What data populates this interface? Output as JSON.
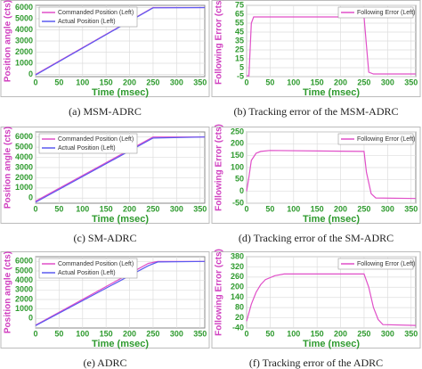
{
  "chart_data": [
    {
      "type": "line",
      "caption": "(a) MSM-ADRC",
      "x_label": "Time (msec)",
      "y_label": "Position angle (cts)",
      "xlim": [
        0,
        360
      ],
      "xticks": [
        0,
        50,
        100,
        150,
        200,
        250,
        300,
        350
      ],
      "ylim": [
        -200,
        6200
      ],
      "yticks": [
        0,
        1000,
        2000,
        3000,
        4000,
        5000,
        6000
      ],
      "grid": true,
      "legend": "upper-left",
      "x": [
        0,
        250,
        360
      ],
      "series": [
        {
          "name": "Commanded Position (Left)",
          "color": "#e04fc8",
          "values": [
            0,
            6000,
            6000
          ]
        },
        {
          "name": "Actual Position (Left)",
          "color": "#5a5af0",
          "values": [
            -50,
            5980,
            6000
          ]
        }
      ]
    },
    {
      "type": "line",
      "caption": "(b) Tracking error of the MSM-ADRC",
      "x_label": "Time (msec)",
      "y_label": "Following Error (cts)",
      "xlim": [
        0,
        360
      ],
      "xticks": [
        0,
        50,
        100,
        150,
        200,
        250,
        300,
        350
      ],
      "ylim": [
        -5,
        75
      ],
      "yticks": [
        -5,
        5,
        15,
        25,
        35,
        45,
        55,
        65,
        75
      ],
      "grid": true,
      "legend": "upper-right",
      "x": [
        0,
        5,
        10,
        15,
        250,
        255,
        260,
        270,
        360
      ],
      "series": [
        {
          "name": "Following Error (Left)",
          "color": "#e04fc8",
          "values": [
            -4,
            -4,
            55,
            62,
            62,
            30,
            0,
            -2,
            -2
          ]
        }
      ]
    },
    {
      "type": "line",
      "caption": "(c) SM-ADRC",
      "x_label": "Time (msec)",
      "y_label": "Position angle (cts)",
      "xlim": [
        0,
        360
      ],
      "xticks": [
        0,
        50,
        100,
        150,
        200,
        250,
        300,
        350
      ],
      "ylim": [
        -500,
        6500
      ],
      "yticks": [
        0,
        1000,
        2000,
        3000,
        4000,
        5000,
        6000
      ],
      "grid": true,
      "legend": "upper-left",
      "x": [
        0,
        250,
        360
      ],
      "series": [
        {
          "name": "Commanded Position (Left)",
          "color": "#e04fc8",
          "values": [
            -300,
            6000,
            6000
          ]
        },
        {
          "name": "Actual Position (Left)",
          "color": "#5a5af0",
          "values": [
            -400,
            5900,
            6000
          ]
        }
      ]
    },
    {
      "type": "line",
      "caption": "(d) Tracking error of the SM-ADRC",
      "x_label": "Time (msec)",
      "y_label": "Following Error (cts)",
      "xlim": [
        0,
        360
      ],
      "xticks": [
        0,
        50,
        100,
        150,
        200,
        250,
        300,
        350
      ],
      "ylim": [
        -50,
        250
      ],
      "yticks": [
        -50,
        0,
        50,
        100,
        150,
        200,
        250
      ],
      "grid": true,
      "legend": "upper-right",
      "x": [
        0,
        5,
        10,
        20,
        30,
        50,
        250,
        255,
        265,
        275,
        360
      ],
      "series": [
        {
          "name": "Following Error (Left)",
          "color": "#e04fc8",
          "values": [
            0,
            60,
            130,
            160,
            168,
            172,
            168,
            80,
            -10,
            -28,
            -30
          ]
        }
      ]
    },
    {
      "type": "line",
      "caption": "(e) ADRC",
      "x_label": "Time (msec)",
      "y_label": "Position angle (cts)",
      "xlim": [
        0,
        360
      ],
      "xticks": [
        0,
        50,
        100,
        150,
        200,
        250,
        300,
        350
      ],
      "ylim": [
        -1000,
        6500
      ],
      "yticks": [
        0,
        1000,
        2000,
        3000,
        4000,
        5000,
        6000
      ],
      "grid": true,
      "legend": "upper-left",
      "x": [
        0,
        240,
        260,
        360
      ],
      "series": [
        {
          "name": "Commanded Position (Left)",
          "color": "#e04fc8",
          "values": [
            -700,
            5800,
            6000,
            6000
          ]
        },
        {
          "name": "Actual Position (Left)",
          "color": "#5a5af0",
          "values": [
            -750,
            5550,
            5950,
            6000
          ]
        }
      ]
    },
    {
      "type": "line",
      "caption": "(f) Tracking error of the ADRC",
      "x_label": "Time (msec)",
      "y_label": "Following Error (cts)",
      "xlim": [
        0,
        360
      ],
      "xticks": [
        0,
        50,
        100,
        150,
        200,
        250,
        300,
        350
      ],
      "ylim": [
        -40,
        380
      ],
      "yticks": [
        -40,
        20,
        80,
        140,
        200,
        260,
        320,
        380
      ],
      "grid": true,
      "legend": "upper-right",
      "x": [
        0,
        10,
        20,
        30,
        40,
        60,
        80,
        250,
        260,
        270,
        280,
        290,
        360
      ],
      "series": [
        {
          "name": "Following Error (Left)",
          "color": "#e04fc8",
          "values": [
            0,
            100,
            170,
            215,
            245,
            268,
            278,
            278,
            200,
            80,
            10,
            -20,
            -25
          ]
        }
      ]
    }
  ]
}
